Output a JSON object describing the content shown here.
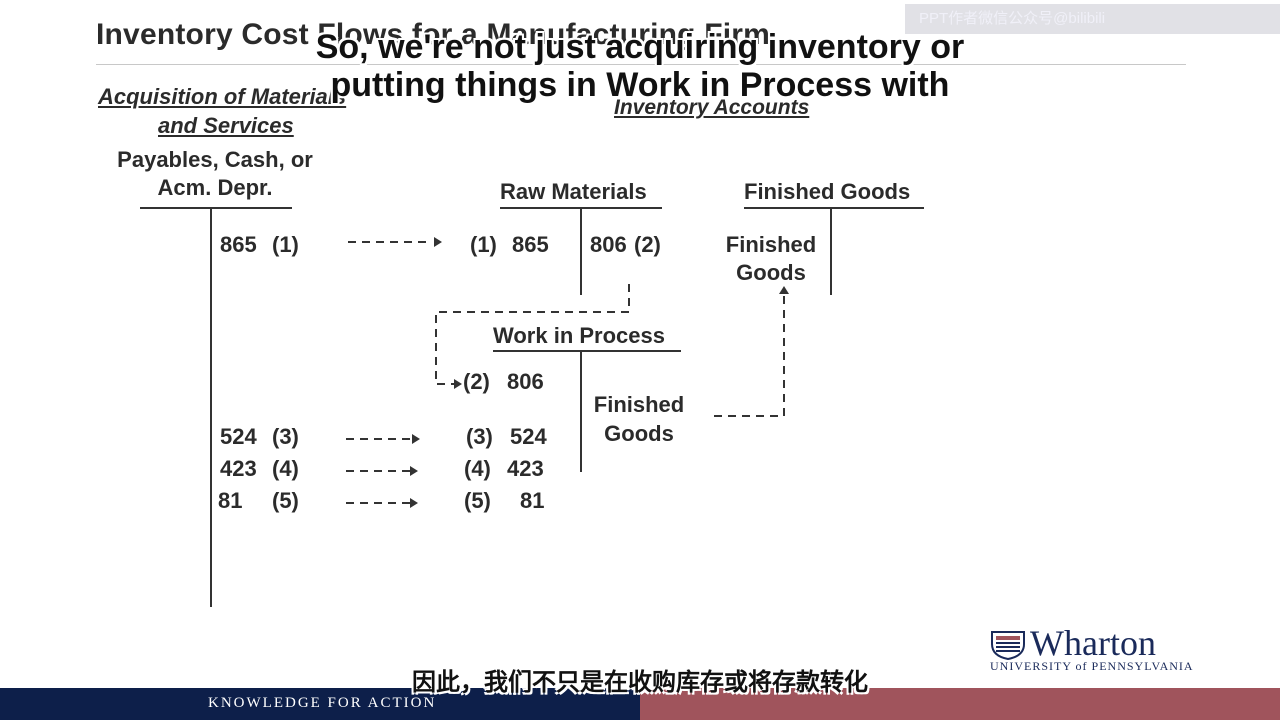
{
  "slide": {
    "title": "Inventory Cost Flows for a Manufacturing Firm",
    "watermark": "PPT作者微信公众号@bilibili",
    "subtitle_en_line1": "So, we're not just acquiring inventory or",
    "subtitle_en_line2": "putting things in Work in Process with",
    "subtitle_zh": "因此，我们不只是在收购库存或将存款转化"
  },
  "left": {
    "section_line1": "Acquisition of Materials",
    "section_line2": "and Services",
    "account_line1": "Payables, Cash, or",
    "account_line2": "Acm. Depr.",
    "entries": [
      {
        "amount": "865",
        "ref": "(1)"
      },
      {
        "amount": "524",
        "ref": "(3)"
      },
      {
        "amount": "423",
        "ref": "(4)"
      },
      {
        "amount": "81",
        "ref": "(5)"
      }
    ]
  },
  "inventory": {
    "section": "Inventory Accounts",
    "raw_materials": {
      "name": "Raw Materials",
      "debit": {
        "ref": "(1)",
        "amount": "865"
      },
      "credit": {
        "amount": "806",
        "ref": "(2)"
      }
    },
    "finished_goods": {
      "name": "Finished Goods",
      "debit_line1": "Finished",
      "debit_line2": "Goods"
    },
    "work_in_process": {
      "name": "Work in Process",
      "debits": [
        {
          "ref": "(2)",
          "amount": "806"
        },
        {
          "ref": "(3)",
          "amount": "524"
        },
        {
          "ref": "(4)",
          "amount": "423"
        },
        {
          "ref": "(5)",
          "amount": "81"
        }
      ],
      "credit_line1": "Finished",
      "credit_line2": "Goods"
    }
  },
  "footer": {
    "tagline": "KNOWLEDGE FOR ACTION",
    "brand": "Wharton",
    "brand_sub": "UNIVERSITY of PENNSYLVANIA"
  },
  "colors": {
    "footer_navy": "#0d1f4a",
    "footer_maroon": "#a0545c",
    "text": "#2b2b2b"
  }
}
